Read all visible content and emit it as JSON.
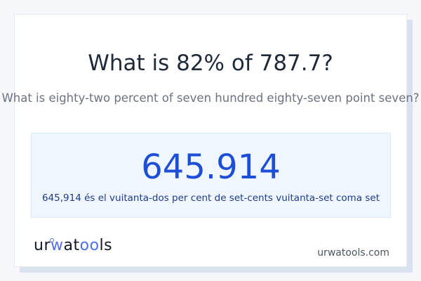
{
  "header": {
    "title": "What is 82% of 787.7?",
    "subtitle": "What is eighty-two percent of seven hundred eighty-seven point seven?"
  },
  "result": {
    "value": "645.914",
    "sentence": "645,914 és el vuitanta-dos per cent de set-cents vuitanta-set coma set"
  },
  "footer": {
    "logo_text": "urwatools",
    "domain": "urwatools.com"
  },
  "colors": {
    "accent": "#1d4ed8",
    "result_bg": "#eff6ff",
    "logo_accent": "#4f6ff0"
  }
}
